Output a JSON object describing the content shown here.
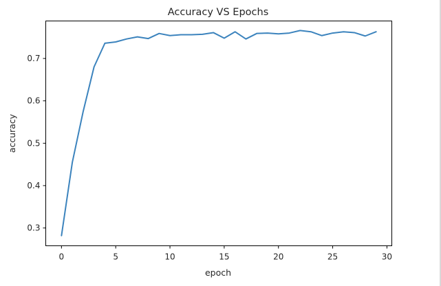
{
  "chart_data": {
    "type": "line",
    "title": "Accuracy VS Epochs",
    "xlabel": "epoch",
    "ylabel": "accuracy",
    "xlim": [
      -1.45,
      30.45
    ],
    "ylim": [
      0.258,
      0.7885
    ],
    "xticks": [
      0,
      5,
      10,
      15,
      20,
      25,
      30
    ],
    "xtick_labels": [
      "0",
      "5",
      "10",
      "15",
      "20",
      "25",
      "30"
    ],
    "yticks": [
      0.3,
      0.4,
      0.5,
      0.6,
      0.7
    ],
    "ytick_labels": [
      "0.3",
      "0.4",
      "0.5",
      "0.6",
      "0.7"
    ],
    "grid": false,
    "legend": false,
    "color": "#3b83bd",
    "x": [
      0,
      1,
      2,
      3,
      4,
      5,
      6,
      7,
      8,
      9,
      10,
      11,
      12,
      13,
      14,
      15,
      16,
      17,
      18,
      19,
      20,
      21,
      22,
      23,
      24,
      25,
      26,
      27,
      28,
      29
    ],
    "y": [
      0.282,
      0.455,
      0.575,
      0.68,
      0.736,
      0.739,
      0.746,
      0.751,
      0.747,
      0.759,
      0.754,
      0.756,
      0.756,
      0.757,
      0.761,
      0.748,
      0.763,
      0.746,
      0.759,
      0.76,
      0.758,
      0.76,
      0.766,
      0.763,
      0.754,
      0.76,
      0.763,
      0.761,
      0.753,
      0.763
    ]
  }
}
